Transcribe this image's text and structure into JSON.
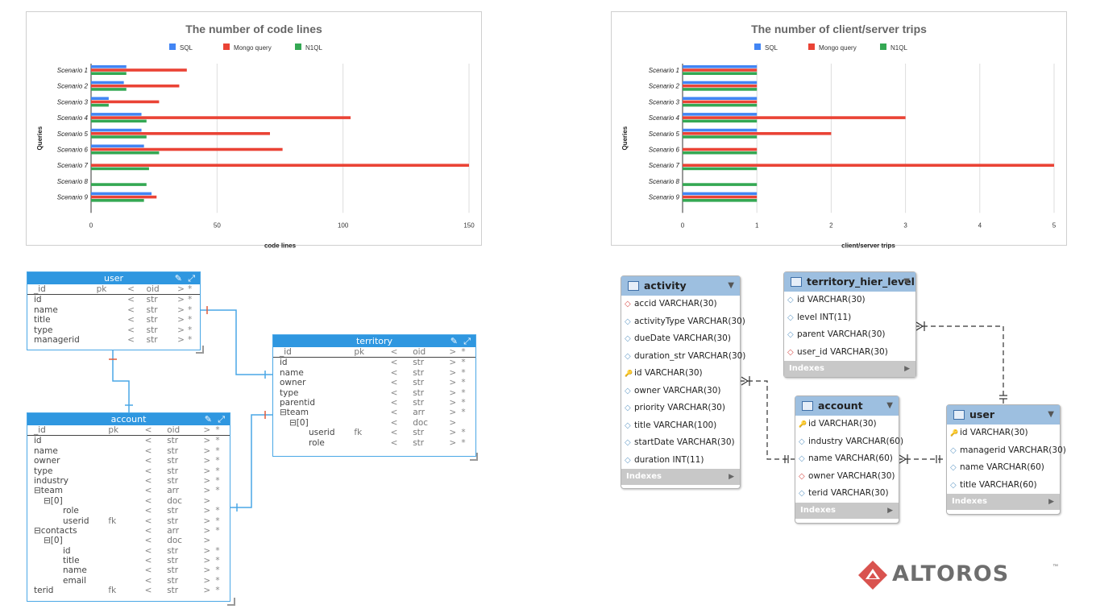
{
  "chart_data": [
    {
      "type": "bar",
      "orientation": "horizontal",
      "title": "The number of code lines",
      "xlabel": "code lines",
      "ylabel": "Queries",
      "categories": [
        "Scenario 1",
        "Scenario 2",
        "Scenario 3",
        "Scenario 4",
        "Scenario 5",
        "Scenario 6",
        "Scenario 7",
        "Scenario 8",
        "Scenario 9"
      ],
      "series": [
        {
          "name": "SQL",
          "color": "#4285f4",
          "values": [
            14,
            13,
            7,
            20,
            20,
            21,
            0,
            0,
            24
          ]
        },
        {
          "name": "Mongo query",
          "color": "#ea4335",
          "values": [
            38,
            35,
            27,
            103,
            71,
            76,
            150,
            0,
            26
          ]
        },
        {
          "name": "N1QL",
          "color": "#34a853",
          "values": [
            14,
            14,
            7,
            22,
            22,
            27,
            23,
            22,
            21
          ]
        }
      ],
      "xlim": [
        0,
        150
      ],
      "xticks": [
        "0",
        "50",
        "100",
        "150"
      ],
      "legend": "top",
      "grid": true
    },
    {
      "type": "bar",
      "orientation": "horizontal",
      "title": "The number of client/server trips",
      "xlabel": "client/server trips",
      "ylabel": "Queries",
      "categories": [
        "Scenario 1",
        "Scenario 2",
        "Scenario 3",
        "Scenario 4",
        "Scenario 5",
        "Scenario 6",
        "Scenario 7",
        "Scenario 8",
        "Scenario 9"
      ],
      "series": [
        {
          "name": "SQL",
          "color": "#4285f4",
          "values": [
            1,
            1,
            1,
            1,
            1,
            0,
            0,
            0,
            1
          ]
        },
        {
          "name": "Mongo query",
          "color": "#ea4335",
          "values": [
            1,
            1,
            1,
            3,
            2,
            1,
            5,
            0,
            1
          ]
        },
        {
          "name": "N1QL",
          "color": "#34a853",
          "values": [
            1,
            1,
            1,
            1,
            1,
            1,
            1,
            1,
            1
          ]
        }
      ],
      "xlim": [
        0,
        5
      ],
      "xticks": [
        "0",
        "1",
        "2",
        "3",
        "4",
        "5"
      ],
      "legend": "top",
      "grid": true
    }
  ],
  "mongo": {
    "header_cols": {
      "pk": "pk",
      "lt": "<",
      "oid": "oid",
      "gt": ">",
      "star": "*"
    },
    "user": {
      "title": "user",
      "rows": [
        {
          "name": "_id",
          "pk": "pk",
          "type": "oid"
        },
        {
          "name": "id",
          "pk": "",
          "type": "str"
        },
        {
          "name": "name",
          "pk": "",
          "type": "str"
        },
        {
          "name": "title",
          "pk": "",
          "type": "str"
        },
        {
          "name": "type",
          "pk": "",
          "type": "str"
        },
        {
          "name": "managerid",
          "pk": "",
          "type": "str"
        }
      ]
    },
    "territory": {
      "title": "territory",
      "rows": [
        {
          "name": "_id",
          "pk": "pk",
          "type": "oid",
          "gt": ">",
          "star": "*"
        },
        {
          "name": "id",
          "pk": "",
          "type": "str",
          "gt": ">",
          "star": "*"
        },
        {
          "name": "name",
          "pk": "",
          "type": "str",
          "gt": ">",
          "star": "*"
        },
        {
          "name": "owner",
          "pk": "",
          "type": "str",
          "gt": ">",
          "star": "*"
        },
        {
          "name": "type",
          "pk": "",
          "type": "str",
          "gt": ">",
          "star": "*"
        },
        {
          "name": "parentid",
          "pk": "",
          "type": "str",
          "gt": ">",
          "star": "*"
        },
        {
          "name": "⊟team",
          "pk": "",
          "type": "arr",
          "gt": ">",
          "star": "*"
        },
        {
          "name": "⊟[0]",
          "pk": "",
          "type": "doc",
          "gt": ">",
          "star": "",
          "indent": 1
        },
        {
          "name": "userid",
          "pk": "fk",
          "type": "str",
          "gt": ">",
          "star": "*",
          "indent": 3
        },
        {
          "name": "role",
          "pk": "",
          "type": "str",
          "gt": ">",
          "star": "*",
          "indent": 3
        }
      ]
    },
    "account": {
      "title": "account",
      "rows": [
        {
          "name": "_id",
          "pk": "pk",
          "type": "oid",
          "gt": ">",
          "star": "*"
        },
        {
          "name": "id",
          "pk": "",
          "type": "str",
          "gt": ">",
          "star": "*"
        },
        {
          "name": "name",
          "pk": "",
          "type": "str",
          "gt": ">",
          "star": "*"
        },
        {
          "name": "owner",
          "pk": "",
          "type": "str",
          "gt": ">",
          "star": "*"
        },
        {
          "name": "type",
          "pk": "",
          "type": "str",
          "gt": ">",
          "star": "*"
        },
        {
          "name": "industry",
          "pk": "",
          "type": "str",
          "gt": ">",
          "star": "*"
        },
        {
          "name": "⊟team",
          "pk": "",
          "type": "arr",
          "gt": ">",
          "star": "*",
          "indent": 0
        },
        {
          "name": "⊟[0]",
          "pk": "",
          "type": "doc",
          "gt": ">",
          "star": "",
          "indent": 1
        },
        {
          "name": "role",
          "pk": "",
          "type": "str",
          "gt": ">",
          "star": "*",
          "indent": 3
        },
        {
          "name": "userid",
          "pk": "fk",
          "type": "str",
          "gt": ">",
          "star": "*",
          "indent": 3
        },
        {
          "name": "⊟contacts",
          "pk": "",
          "type": "arr",
          "gt": ">",
          "star": "*",
          "indent": 0
        },
        {
          "name": "⊟[0]",
          "pk": "",
          "type": "doc",
          "gt": ">",
          "star": "",
          "indent": 1
        },
        {
          "name": "id",
          "pk": "",
          "type": "str",
          "gt": ">",
          "star": "*",
          "indent": 3
        },
        {
          "name": "title",
          "pk": "",
          "type": "str",
          "gt": ">",
          "star": "*",
          "indent": 3
        },
        {
          "name": "name",
          "pk": "",
          "type": "str",
          "gt": ">",
          "star": "*",
          "indent": 3
        },
        {
          "name": "email",
          "pk": "",
          "type": "str",
          "gt": ">",
          "star": "*",
          "indent": 3
        },
        {
          "name": "terid",
          "pk": "fk",
          "type": "str",
          "gt": ">",
          "star": "*"
        }
      ]
    }
  },
  "workbench": {
    "indexes_label": "Indexes",
    "activity": {
      "title": "activity",
      "columns": [
        {
          "key": "fk",
          "text": "accid VARCHAR(30)"
        },
        {
          "key": "col",
          "text": "activityType VARCHAR(30)"
        },
        {
          "key": "col",
          "text": "dueDate VARCHAR(30)"
        },
        {
          "key": "col",
          "text": "duration_str VARCHAR(30)"
        },
        {
          "key": "pk",
          "text": "id VARCHAR(30)"
        },
        {
          "key": "col",
          "text": "owner VARCHAR(30)"
        },
        {
          "key": "col",
          "text": "priority VARCHAR(30)"
        },
        {
          "key": "col",
          "text": "title VARCHAR(100)"
        },
        {
          "key": "col",
          "text": "startDate VARCHAR(30)"
        },
        {
          "key": "col",
          "text": "duration INT(11)"
        }
      ]
    },
    "territory_hier_level": {
      "title": "territory_hier_level",
      "columns": [
        {
          "key": "col",
          "text": "id VARCHAR(30)"
        },
        {
          "key": "col",
          "text": "level INT(11)"
        },
        {
          "key": "col",
          "text": "parent VARCHAR(30)"
        },
        {
          "key": "fk",
          "text": "user_id VARCHAR(30)"
        }
      ]
    },
    "account": {
      "title": "account",
      "columns": [
        {
          "key": "pk",
          "text": "id VARCHAR(30)"
        },
        {
          "key": "col",
          "text": "industry VARCHAR(60)"
        },
        {
          "key": "col",
          "text": "name VARCHAR(60)"
        },
        {
          "key": "fk",
          "text": "owner VARCHAR(30)"
        },
        {
          "key": "col",
          "text": "terid VARCHAR(30)"
        }
      ]
    },
    "user": {
      "title": "user",
      "columns": [
        {
          "key": "pk",
          "text": "id VARCHAR(30)"
        },
        {
          "key": "col",
          "text": "managerid VARCHAR(30)"
        },
        {
          "key": "col",
          "text": "name VARCHAR(60)"
        },
        {
          "key": "col",
          "text": "title VARCHAR(60)"
        }
      ]
    }
  },
  "logo": {
    "text": "ALTOROS",
    "tm": "™",
    "color": "#d9534f"
  }
}
